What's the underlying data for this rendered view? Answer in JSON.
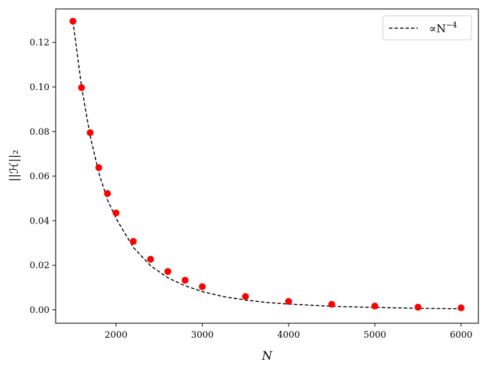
{
  "chart_data": {
    "type": "scatter",
    "title": "",
    "xlabel": "N",
    "ylabel": "||ℋ||₂",
    "xlim": [
      1300,
      6200
    ],
    "ylim": [
      -0.006,
      0.135
    ],
    "xticks": [
      2000,
      3000,
      4000,
      5000,
      6000
    ],
    "xtick_labels": [
      "2000",
      "3000",
      "4000",
      "5000",
      "6000"
    ],
    "yticks": [
      0.0,
      0.02,
      0.04,
      0.06,
      0.08,
      0.1,
      0.12
    ],
    "ytick_labels": [
      "0.00",
      "0.02",
      "0.04",
      "0.06",
      "0.08",
      "0.10",
      "0.12"
    ],
    "grid": false,
    "legend_position": "top-right",
    "series": [
      {
        "kind": "scatter",
        "color": "#ff0000",
        "x": [
          1500,
          1600,
          1700,
          1800,
          1900,
          2000,
          2200,
          2400,
          2600,
          2800,
          3000,
          3500,
          4000,
          4500,
          5000,
          5500,
          6000
        ],
        "y": [
          0.1295,
          0.0997,
          0.0795,
          0.0638,
          0.0522,
          0.0435,
          0.0307,
          0.0227,
          0.0172,
          0.0133,
          0.0104,
          0.006,
          0.0038,
          0.0025,
          0.0017,
          0.0012,
          0.0009
        ]
      },
      {
        "kind": "line",
        "name": "∝N⁻⁴",
        "legend_label": "∝N",
        "legend_exponent": "−4",
        "style": "dashed",
        "color": "#000000",
        "x": [
          1500,
          1600,
          1700,
          1800,
          1900,
          2000,
          2200,
          2400,
          2600,
          2800,
          3000,
          3250,
          3500,
          3750,
          4000,
          4500,
          5000,
          5500,
          6000
        ],
        "y": [
          0.1295,
          0.1,
          0.078,
          0.0614,
          0.0494,
          0.041,
          0.028,
          0.0198,
          0.0144,
          0.0108,
          0.0082,
          0.0059,
          0.0044,
          0.0033,
          0.0026,
          0.0016,
          0.0011,
          0.0007,
          0.0005
        ]
      }
    ]
  }
}
